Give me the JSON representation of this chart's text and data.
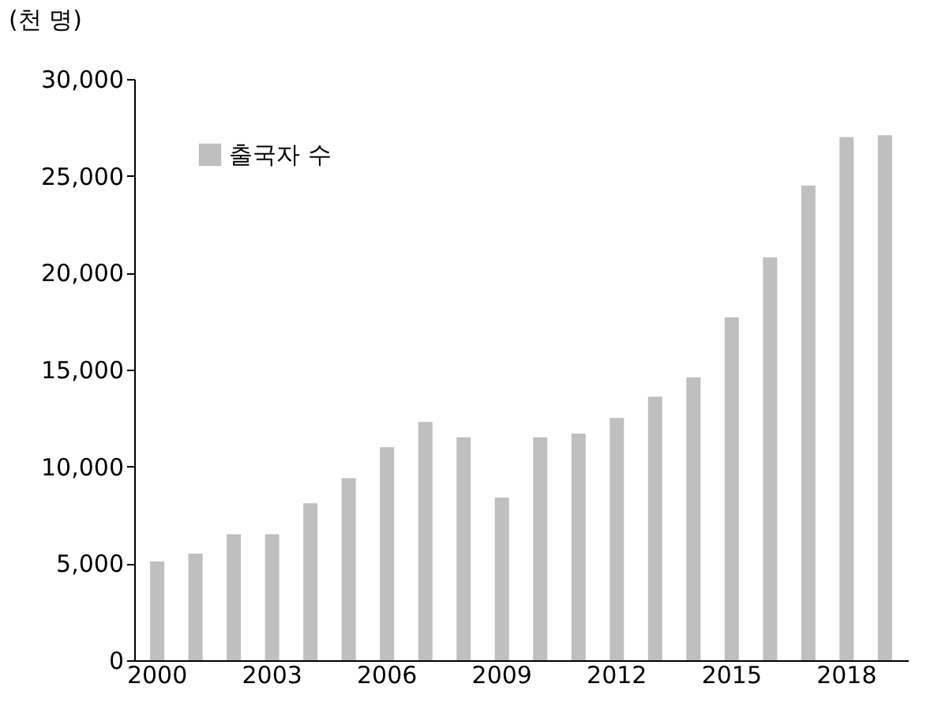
{
  "chart_data": {
    "type": "bar",
    "ylabel": "(천 명)",
    "categories": [
      "2000",
      null,
      null,
      "2003",
      null,
      null,
      "2006",
      null,
      null,
      "2009",
      null,
      null,
      "2012",
      null,
      null,
      "2015",
      null,
      null,
      "2018",
      null
    ],
    "series": [
      {
        "name": "출국자 수",
        "color": "#bfbfbf",
        "values": [
          5100,
          5500,
          6500,
          6500,
          8100,
          9400,
          11000,
          12300,
          11500,
          8400,
          11500,
          11700,
          12500,
          13600,
          14600,
          17700,
          20800,
          24500,
          27000,
          27100
        ]
      }
    ],
    "ylim": [
      0,
      30000
    ],
    "yticks": [
      0,
      {
        "value": 5000,
        "label": "5,000"
      },
      {
        "value": 10000,
        "label": "10,000"
      },
      {
        "value": 15000,
        "label": "15,000"
      },
      {
        "value": 20000,
        "label": "20,000"
      },
      {
        "value": 25000,
        "label": "25,000"
      },
      {
        "value": 30000,
        "label": "30,000"
      }
    ],
    "grid": false,
    "legend": "top left"
  }
}
